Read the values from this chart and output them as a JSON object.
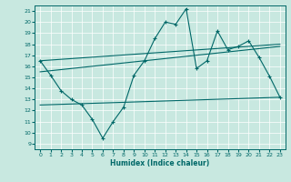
{
  "xlabel": "Humidex (Indice chaleur)",
  "xlim": [
    -0.5,
    23.5
  ],
  "ylim": [
    8.5,
    21.5
  ],
  "yticks": [
    9,
    10,
    11,
    12,
    13,
    14,
    15,
    16,
    17,
    18,
    19,
    20,
    21
  ],
  "xticks": [
    0,
    1,
    2,
    3,
    4,
    5,
    6,
    7,
    8,
    9,
    10,
    11,
    12,
    13,
    14,
    15,
    16,
    17,
    18,
    19,
    20,
    21,
    22,
    23
  ],
  "bg_color": "#c8e8e0",
  "grid_color": "#ffffff",
  "line_color": "#006868",
  "line1_x": [
    0,
    1,
    2,
    3,
    4,
    5,
    6,
    7,
    8,
    9,
    10,
    11,
    12,
    13,
    14,
    15,
    16,
    17,
    18,
    19,
    20,
    21,
    22,
    23
  ],
  "line1_y": [
    16.5,
    15.2,
    13.8,
    13.0,
    12.5,
    11.2,
    9.5,
    11.0,
    12.3,
    15.2,
    16.5,
    18.5,
    20.0,
    19.8,
    21.2,
    15.8,
    16.5,
    19.2,
    17.5,
    17.8,
    18.3,
    16.8,
    15.1,
    13.2
  ],
  "line2_x": [
    0,
    23
  ],
  "line2_y": [
    15.5,
    17.8
  ],
  "line3_x": [
    0,
    23
  ],
  "line3_y": [
    16.5,
    18.0
  ],
  "line4_x": [
    0,
    23
  ],
  "line4_y": [
    12.5,
    13.2
  ]
}
